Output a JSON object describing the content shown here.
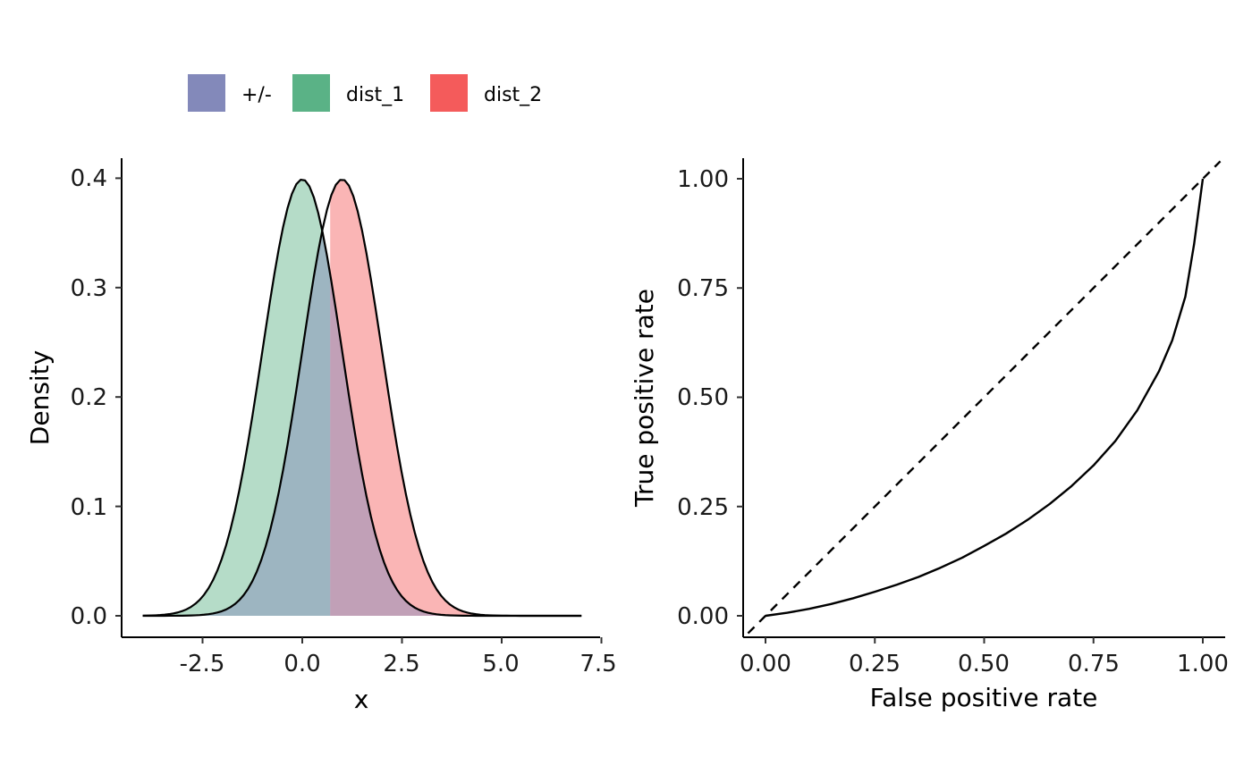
{
  "legend": {
    "position": "top",
    "items": [
      {
        "label": "+/-",
        "color": "#8389BA"
      },
      {
        "label": "dist_1",
        "color": "#5AB286"
      },
      {
        "label": "dist_2",
        "color": "#F45B5B"
      }
    ]
  },
  "chart_data": [
    {
      "type": "area",
      "xlabel": "x",
      "ylabel": "Density",
      "xlim": [
        -4,
        7
      ],
      "ylim": [
        0,
        0.4
      ],
      "x_ticks": [
        "-2.5",
        "0.0",
        "2.5",
        "5.0",
        "7.5"
      ],
      "y_ticks": [
        "0.0",
        "0.1",
        "0.2",
        "0.3",
        "0.4"
      ],
      "threshold": 0.7,
      "series": [
        {
          "name": "dist_1",
          "mean": 0,
          "sd": 1,
          "color": "#5AB286",
          "fill_opacity": 0.45
        },
        {
          "name": "dist_2",
          "mean": 1,
          "sd": 1,
          "color": "#F45B5B",
          "fill_opacity": 0.45
        },
        {
          "name": "+/-",
          "color": "#8389BA",
          "fill_opacity": 0.48
        }
      ],
      "x_range": [
        -4,
        7
      ],
      "grid": false
    },
    {
      "type": "line",
      "xlabel": "False positive rate",
      "ylabel": "True positive rate",
      "xlim": [
        0,
        1
      ],
      "ylim": [
        0,
        1
      ],
      "x_ticks": [
        "0.00",
        "0.25",
        "0.50",
        "0.75",
        "1.00"
      ],
      "y_ticks": [
        "0.00",
        "0.25",
        "0.50",
        "0.75",
        "1.00"
      ],
      "series": [
        {
          "style": "solid",
          "x": [
            0.0,
            0.05,
            0.1,
            0.15,
            0.2,
            0.25,
            0.3,
            0.35,
            0.4,
            0.45,
            0.5,
            0.55,
            0.6,
            0.65,
            0.7,
            0.75,
            0.8,
            0.85,
            0.9,
            0.93,
            0.96,
            0.98,
            1.0
          ],
          "y": [
            0.0,
            0.007,
            0.016,
            0.027,
            0.04,
            0.055,
            0.071,
            0.089,
            0.11,
            0.133,
            0.16,
            0.188,
            0.22,
            0.256,
            0.297,
            0.344,
            0.4,
            0.47,
            0.56,
            0.63,
            0.73,
            0.85,
            1.0
          ]
        },
        {
          "style": "dashed",
          "x": [
            -0.04,
            1.04
          ],
          "y": [
            -0.04,
            1.04
          ]
        }
      ],
      "grid": false
    }
  ]
}
